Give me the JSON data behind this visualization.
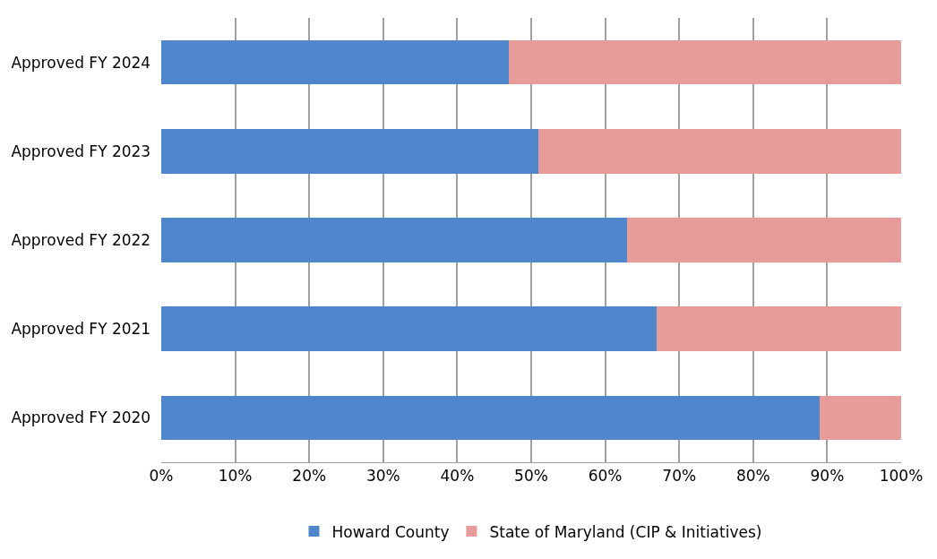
{
  "chart_data": {
    "type": "bar",
    "orientation": "horizontal",
    "stacked": true,
    "categories": [
      "Approved FY 2024",
      "Approved FY 2023",
      "Approved FY 2022",
      "Approved FY 2021",
      "Approved FY 2020"
    ],
    "series": [
      {
        "name": "Howard County",
        "color": "#4f86cc",
        "values": [
          47,
          51,
          63,
          67,
          89
        ]
      },
      {
        "name": "State of Maryland (CIP & Initiatives)",
        "color": "#e89c9a",
        "values": [
          53,
          49,
          37,
          33,
          11
        ]
      }
    ],
    "xlim": [
      0,
      100
    ],
    "xticks": [
      {
        "value": 0,
        "label": "0%"
      },
      {
        "value": 10,
        "label": "10%"
      },
      {
        "value": 20,
        "label": "20%"
      },
      {
        "value": 30,
        "label": "30%"
      },
      {
        "value": 40,
        "label": "40%"
      },
      {
        "value": 50,
        "label": "50%"
      },
      {
        "value": 60,
        "label": "60%"
      },
      {
        "value": 70,
        "label": "70%"
      },
      {
        "value": 80,
        "label": "80%"
      },
      {
        "value": 90,
        "label": "90%"
      },
      {
        "value": 100,
        "label": "100%"
      }
    ],
    "grid": "x",
    "legend": "bottom"
  }
}
